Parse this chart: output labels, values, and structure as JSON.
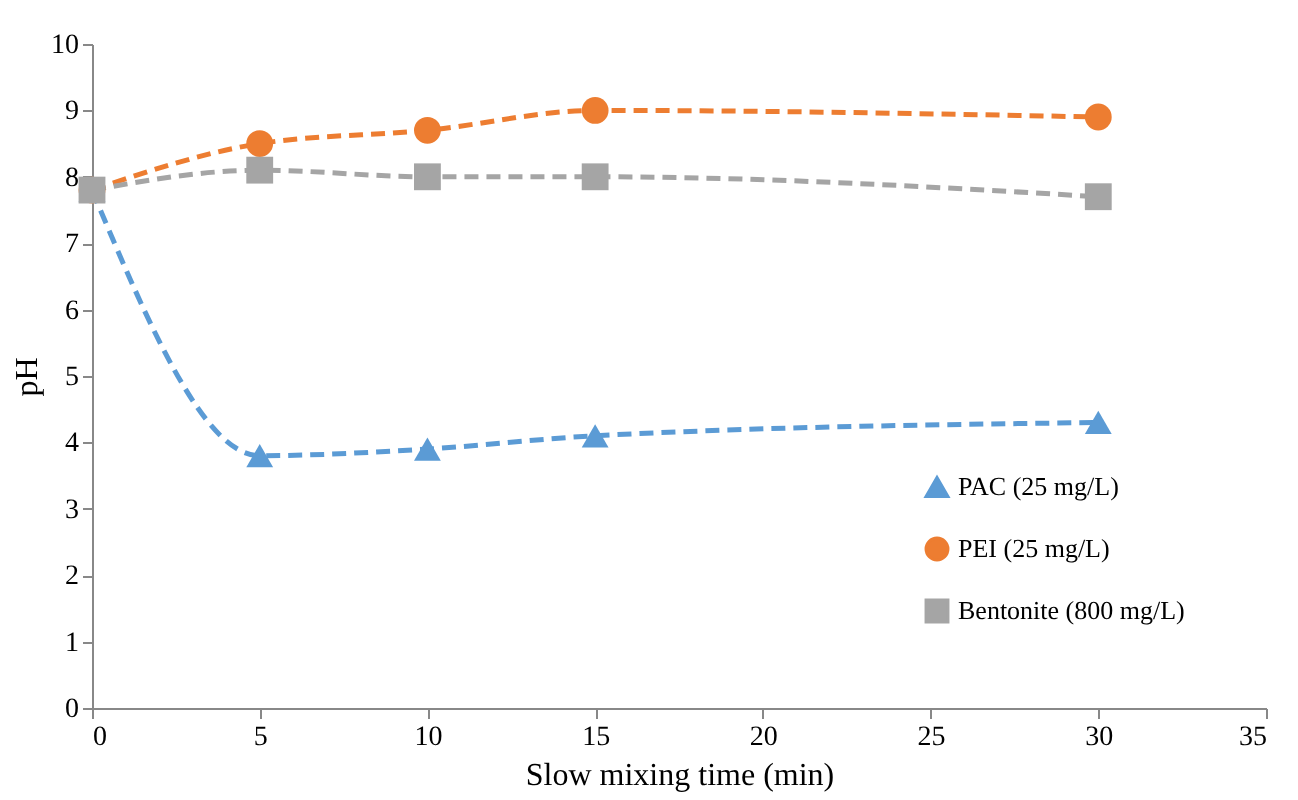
{
  "chart_data": {
    "type": "line",
    "xlabel": "Slow mixing time (min)",
    "ylabel": "pH",
    "x": [
      0,
      5,
      10,
      15,
      30
    ],
    "series": [
      {
        "name": "PAC (25 mg/L)",
        "color": "#5b9bd5",
        "marker": "triangle",
        "values": [
          7.8,
          3.8,
          3.9,
          4.1,
          4.3
        ]
      },
      {
        "name": "PEI (25 mg/L)",
        "color": "#ed7d31",
        "marker": "circle",
        "values": [
          7.8,
          8.5,
          8.7,
          9.0,
          8.9
        ]
      },
      {
        "name": "Bentonite (800 mg/L)",
        "color": "#a5a5a5",
        "marker": "square",
        "values": [
          7.8,
          8.1,
          8.0,
          8.0,
          7.7
        ]
      }
    ],
    "xlim": [
      0,
      35
    ],
    "xticks": [
      0,
      5,
      10,
      15,
      20,
      25,
      30,
      35
    ],
    "ylim": [
      0,
      10
    ],
    "yticks": [
      0,
      1,
      2,
      3,
      4,
      5,
      6,
      7,
      8,
      9,
      10
    ],
    "grid": false,
    "legend": "bottom right",
    "line_style": "dashed"
  }
}
